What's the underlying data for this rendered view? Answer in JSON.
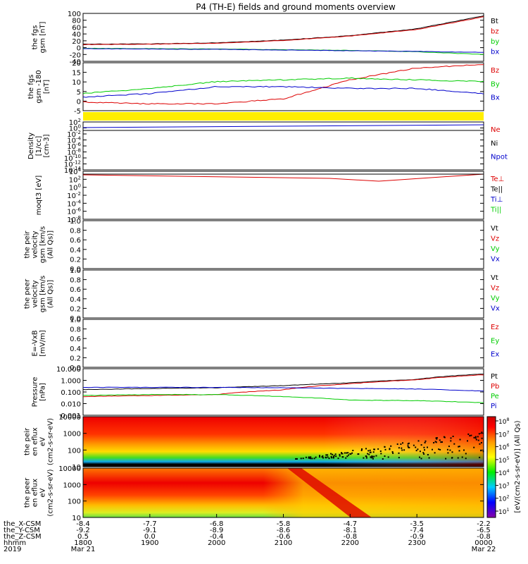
{
  "title": "P4 (TH-E) fields and ground moments overview",
  "colors": {
    "black": "#000000",
    "red": "#dd0000",
    "green": "#00cc00",
    "blue": "#0000cc",
    "yellow": "#ffee00"
  },
  "colorbar": {
    "label": "[eV/(cm2-s-sr-eV)] (All Qs)",
    "ticks": [
      "10^8",
      "10^7",
      "10^6",
      "10^5",
      "10^4",
      "10^3",
      "10^2",
      "10^1"
    ]
  },
  "bottom_axis": {
    "rows": [
      {
        "label": "the_X-CSM",
        "values": [
          "-8.4",
          "-7.7",
          "-6.8",
          "-5.8",
          "-4.7",
          "-3.5",
          "-2.2"
        ]
      },
      {
        "label": "the_Y-CSM",
        "values": [
          "-9.2",
          "-9.1",
          "-8.9",
          "-8.6",
          "-8.1",
          "-7.4",
          "-6.5"
        ]
      },
      {
        "label": "the_Z-CSM",
        "values": [
          "0.5",
          "0.0",
          "-0.4",
          "-0.6",
          "-0.8",
          "-0.9",
          "-0.8"
        ]
      },
      {
        "label": "hhmm",
        "values": [
          "1800",
          "1900",
          "2000",
          "2100",
          "2200",
          "2300",
          "0000"
        ]
      }
    ],
    "year": "2019",
    "start_date": "Mar 21",
    "end_date": "Mar 22"
  },
  "chart_data": [
    {
      "type": "line",
      "ylabel": "the fgs gsm [nT]",
      "ylim": [
        -40,
        100
      ],
      "ytick_labels": [
        "100",
        "80",
        "60",
        "40",
        "20",
        "0",
        "-20",
        "-40"
      ],
      "x": [
        "1800",
        "1900",
        "2000",
        "2100",
        "2200",
        "2300",
        "0000"
      ],
      "series": [
        {
          "name": "Bt",
          "color": "#000000",
          "values": [
            10,
            11,
            14,
            22,
            35,
            55,
            93
          ]
        },
        {
          "name": "bz",
          "color": "#dd0000",
          "values": [
            9,
            10,
            13,
            21,
            34,
            53,
            90
          ]
        },
        {
          "name": "by",
          "color": "#00cc00",
          "values": [
            -2,
            -3,
            -4,
            -6,
            -8,
            -12,
            -20
          ]
        },
        {
          "name": "bx",
          "color": "#0000cc",
          "values": [
            -3,
            -4,
            -5,
            -7,
            -9,
            -11,
            -14
          ]
        }
      ]
    },
    {
      "type": "line",
      "ylabel": "the fgs gsm -180 [nT]",
      "ylim": [
        -8,
        20
      ],
      "ytick_labels": [
        "20",
        "15",
        "10",
        "5",
        "0",
        "-5"
      ],
      "x": [
        "1800",
        "1900",
        "2000",
        "2100",
        "2200",
        "2300",
        "0000"
      ],
      "series": [
        {
          "name": "Bz",
          "color": "#dd0000",
          "values": [
            -3,
            -4,
            -4,
            -1,
            10,
            17,
            19
          ]
        },
        {
          "name": "By",
          "color": "#00cc00",
          "values": [
            2,
            5,
            9,
            10,
            11,
            10,
            9
          ]
        },
        {
          "name": "Bx",
          "color": "#0000cc",
          "values": [
            0,
            2,
            6,
            6,
            5,
            5,
            2
          ]
        }
      ]
    },
    {
      "type": "line",
      "ylabel": "Density [1/cc] [cm-3]",
      "log": true,
      "ylim": [
        "10^-14",
        "10^2"
      ],
      "ytick_labels": [
        "10^2",
        "10^0",
        "10^-2",
        "10^-4",
        "10^-6",
        "10^-8",
        "10^-10",
        "10^-12",
        "10^-14"
      ],
      "series": [
        {
          "name": "Ne",
          "color": "#dd0000"
        },
        {
          "name": "Ni",
          "color": "#000000"
        },
        {
          "name": "Npot",
          "color": "#0000cc"
        }
      ]
    },
    {
      "type": "line",
      "ylabel": "moqt3 [eV]",
      "log": true,
      "ytick_labels": [
        "10^4",
        "10^2",
        "10^0",
        "10^-2",
        "10^-4",
        "10^-6",
        "10^-8"
      ],
      "series": [
        {
          "name": "Te⊥",
          "color": "#dd0000"
        },
        {
          "name": "Te||",
          "color": "#000000"
        },
        {
          "name": "Ti⊥",
          "color": "#0000cc"
        },
        {
          "name": "Ti||",
          "color": "#00cc00"
        }
      ]
    },
    {
      "type": "line",
      "ylabel": "the peir velocity gsm [km/s (All Qs)]",
      "ylim": [
        0,
        1
      ],
      "ytick_labels": [
        "1.0",
        "0.8",
        "0.6",
        "0.4",
        "0.2",
        "0.0"
      ],
      "series": [
        {
          "name": "Vt",
          "color": "#000000"
        },
        {
          "name": "Vz",
          "color": "#dd0000"
        },
        {
          "name": "Vy",
          "color": "#00cc00"
        },
        {
          "name": "Vx",
          "color": "#0000cc"
        }
      ]
    },
    {
      "type": "line",
      "ylabel": "the peer velocity gsm [km/s (All Qs)]",
      "ylim": [
        0,
        1
      ],
      "ytick_labels": [
        "1.0",
        "0.8",
        "0.6",
        "0.4",
        "0.2",
        "0.0"
      ],
      "series": [
        {
          "name": "Vt",
          "color": "#000000"
        },
        {
          "name": "Vz",
          "color": "#dd0000"
        },
        {
          "name": "Vy",
          "color": "#00cc00"
        },
        {
          "name": "Vx",
          "color": "#0000cc"
        }
      ]
    },
    {
      "type": "line",
      "ylabel": "E=-VxB [mV/m]",
      "ylim": [
        0,
        1
      ],
      "ytick_labels": [
        "1.0",
        "0.8",
        "0.6",
        "0.4",
        "0.2",
        "0.0"
      ],
      "series": [
        {
          "name": "Ez",
          "color": "#dd0000"
        },
        {
          "name": "Ey",
          "color": "#00cc00"
        },
        {
          "name": "Ex",
          "color": "#0000cc"
        }
      ]
    },
    {
      "type": "line",
      "ylabel": "Pressure [nPa]",
      "log": true,
      "ylim": [
        0.001,
        10
      ],
      "ytick_labels": [
        "10.000",
        "1.000",
        "0.100",
        "0.010",
        "0.001"
      ],
      "x": [
        "1800",
        "1900",
        "2000",
        "2100",
        "2200",
        "2300",
        "0000"
      ],
      "series": [
        {
          "name": "Pt",
          "color": "#000000",
          "values": [
            0.16,
            0.2,
            0.23,
            0.35,
            0.6,
            1.2,
            3.5
          ]
        },
        {
          "name": "Pb",
          "color": "#dd0000",
          "values": [
            0.04,
            0.05,
            0.06,
            0.15,
            0.5,
            1.1,
            3.0
          ]
        },
        {
          "name": "Pe",
          "color": "#00cc00",
          "values": [
            0.05,
            0.06,
            0.06,
            0.04,
            0.02,
            0.018,
            0.012
          ]
        },
        {
          "name": "Pi",
          "color": "#0000cc",
          "values": [
            0.25,
            0.25,
            0.25,
            0.23,
            0.2,
            0.18,
            0.12
          ]
        }
      ]
    },
    {
      "type": "heatmap",
      "ylabel": "the peir en eflux eV (cm2-s-sr-eV)",
      "log": true,
      "ytick_labels": [
        "10000",
        "1000",
        "100",
        "10"
      ]
    },
    {
      "type": "heatmap",
      "ylabel": "the peer en eflux eV (cm2-s-sr-eV)",
      "log": true,
      "ytick_labels": [
        "10000",
        "1000",
        "100",
        "10"
      ]
    }
  ]
}
